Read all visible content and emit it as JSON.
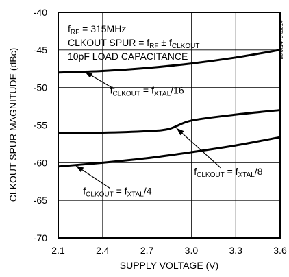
{
  "chart_data": {
    "type": "line",
    "chart_id": "MAX1479 toc14",
    "xlabel": "SUPPLY VOLTAGE (V)",
    "ylabel": "CLKOUT SPUR MAGNITUDE (dBc)",
    "xlim": [
      2.1,
      3.6
    ],
    "ylim": [
      -70,
      -40
    ],
    "x_ticks": [
      "2.1",
      "2.4",
      "2.7",
      "3.0",
      "3.3",
      "3.6"
    ],
    "y_ticks": [
      "-40",
      "-45",
      "-50",
      "-55",
      "-60",
      "-65",
      "-70"
    ],
    "grid": true,
    "conditions": {
      "line1": {
        "prefix": "f",
        "sub1": "RF",
        "rest": " = 315MHz"
      },
      "line2": {
        "part1": "CLKOUT SPUR = f",
        "sub1": "RF",
        "part2": " ± f",
        "sub2": "CLKOUT"
      },
      "line3": "10pF LOAD CAPACITANCE"
    },
    "series": [
      {
        "name": "fCLKOUT = fXTAL/16",
        "label": {
          "p1": "f",
          "s1": "CLKOUT",
          "p2": " = f",
          "s2": "XTAL",
          "p3": "/16"
        },
        "x": [
          2.1,
          2.4,
          2.7,
          3.0,
          3.3,
          3.6
        ],
        "y": [
          -48.0,
          -47.8,
          -47.4,
          -46.8,
          -46.0,
          -45.0
        ]
      },
      {
        "name": "fCLKOUT = fXTAL/8",
        "label": {
          "p1": "f",
          "s1": "CLKOUT",
          "p2": " = f",
          "s2": "XTAL",
          "p3": "/8"
        },
        "x": [
          2.1,
          2.4,
          2.7,
          2.85,
          3.0,
          3.3,
          3.6
        ],
        "y": [
          -56.0,
          -56.0,
          -55.8,
          -55.5,
          -54.4,
          -53.6,
          -53.0
        ]
      },
      {
        "name": "fCLKOUT = fXTAL/4",
        "label": {
          "p1": "f",
          "s1": "CLKOUT",
          "p2": " = f",
          "s2": "XTAL",
          "p3": "/4"
        },
        "x": [
          2.1,
          2.4,
          2.7,
          3.0,
          3.3,
          3.6
        ],
        "y": [
          -60.5,
          -60.0,
          -59.4,
          -58.6,
          -57.7,
          -56.6
        ]
      }
    ],
    "annotations": [
      {
        "series": 0,
        "label_pos": [
          2.7,
          -50.8
        ],
        "arrow_from": [
          2.48,
          -50.2
        ],
        "arrow_to": [
          2.28,
          -47.9
        ]
      },
      {
        "series": 1,
        "label_pos": [
          3.25,
          -61.6
        ],
        "arrow_from": [
          3.2,
          -60.7
        ],
        "arrow_to": [
          2.9,
          -55.4
        ]
      },
      {
        "series": 2,
        "label_pos": [
          2.5,
          -64.2
        ],
        "arrow_from": [
          2.45,
          -63.4
        ],
        "arrow_to": [
          2.22,
          -60.4
        ]
      }
    ]
  }
}
